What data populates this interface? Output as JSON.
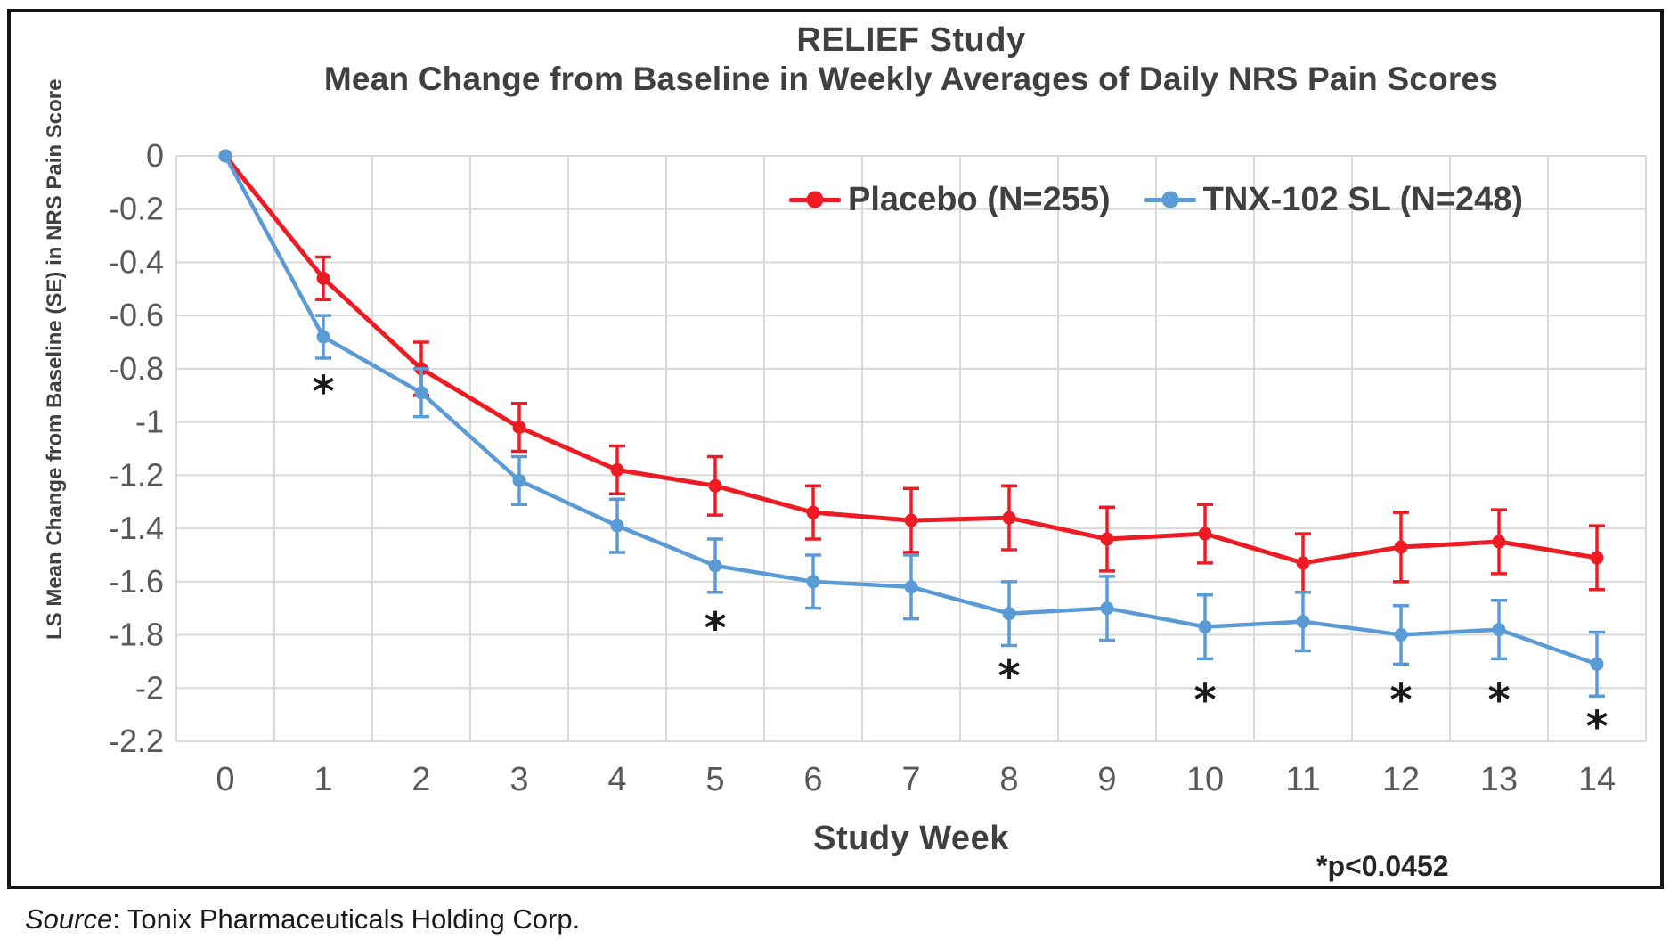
{
  "chart": {
    "title": "RELIEF Study",
    "subtitle": "Mean Change from Baseline in Weekly Averages of Daily NRS Pain Scores",
    "y_axis_title": "LS Mean Change from Baseline (SE) in NRS Pain Score",
    "x_axis_title": "Study Week",
    "significance_note": "*p<0.0452",
    "legend": {
      "placebo_label": "Placebo (N=255)",
      "tnx_label": "TNX-102 SL (N=248)"
    }
  },
  "source": {
    "label": "Source",
    "text": ": Tonix Pharmaceuticals Holding Corp."
  },
  "colors": {
    "placebo": "#ED1C24",
    "tnx": "#5B9BD5",
    "grid": "#D9D9D9",
    "title_text": "#404040",
    "tick_text": "#595959",
    "asterisk": "#1A1A1A",
    "frame_border": "#141414"
  },
  "chart_data": {
    "type": "line",
    "title": "RELIEF Study",
    "subtitle": "Mean Change from Baseline in Weekly Averages of Daily NRS Pain Scores",
    "xlabel": "Study Week",
    "ylabel": "LS Mean Change from Baseline (SE) in NRS Pain Score",
    "x": [
      0,
      1,
      2,
      3,
      4,
      5,
      6,
      7,
      8,
      9,
      10,
      11,
      12,
      13,
      14
    ],
    "ylim": [
      -2.2,
      0
    ],
    "ytick_step": 0.2,
    "grid": true,
    "legend_position": "top-inside",
    "error_bars": "SE",
    "series": [
      {
        "name": "Placebo (N=255)",
        "color": "#ED1C24",
        "values": [
          0,
          -0.46,
          -0.8,
          -1.02,
          -1.18,
          -1.24,
          -1.34,
          -1.37,
          -1.36,
          -1.44,
          -1.42,
          -1.53,
          -1.47,
          -1.45,
          -1.51
        ],
        "se": [
          0,
          0.08,
          0.1,
          0.09,
          0.09,
          0.11,
          0.1,
          0.12,
          0.12,
          0.12,
          0.11,
          0.11,
          0.13,
          0.12,
          0.12
        ]
      },
      {
        "name": "TNX-102 SL (N=248)",
        "color": "#5B9BD5",
        "values": [
          0,
          -0.68,
          -0.89,
          -1.22,
          -1.39,
          -1.54,
          -1.6,
          -1.62,
          -1.72,
          -1.7,
          -1.77,
          -1.75,
          -1.8,
          -1.78,
          -1.91
        ],
        "se": [
          0,
          0.08,
          0.09,
          0.09,
          0.1,
          0.1,
          0.1,
          0.12,
          0.12,
          0.12,
          0.12,
          0.11,
          0.11,
          0.11,
          0.12
        ]
      }
    ],
    "significance_marks": {
      "symbol": "*",
      "note": "*p<0.0452",
      "weeks": [
        1,
        5,
        8,
        10,
        12,
        13,
        14
      ],
      "y_positions": [
        -0.86,
        -1.75,
        -1.93,
        -2.02,
        -2.02,
        -2.02,
        -2.12
      ]
    }
  }
}
